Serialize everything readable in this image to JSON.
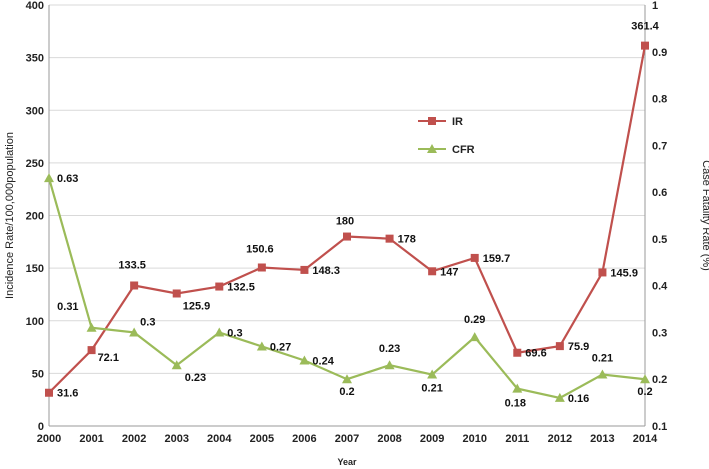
{
  "chart_data": {
    "type": "line",
    "title": "",
    "xlabel": "Year",
    "ylabel": "Incidence Rate/100,000population",
    "y2label": "Case Fatality Rate (%)",
    "x": [
      2000,
      2001,
      2002,
      2003,
      2004,
      2005,
      2006,
      2007,
      2008,
      2009,
      2010,
      2011,
      2012,
      2013,
      2014
    ],
    "ylim": [
      0,
      400
    ],
    "y2lim": [
      0.1,
      1
    ],
    "y_ticks": [
      "0",
      "50",
      "100",
      "150",
      "200",
      "250",
      "300",
      "350",
      "400"
    ],
    "y2_ticks": [
      "0.1",
      "0.2",
      "0.3",
      "0.4",
      "0.5",
      "0.6",
      "0.7",
      "0.8",
      "0.9",
      "1"
    ],
    "grid": true,
    "legend_position": "center",
    "series": [
      {
        "name": "IR",
        "axis": "left",
        "color": "#c0504d",
        "marker": "square",
        "values": [
          31.6,
          72.1,
          133.5,
          125.9,
          132.5,
          150.6,
          148.3,
          180,
          178,
          147,
          159.7,
          69.6,
          75.9,
          145.9,
          361.4
        ],
        "labels": [
          "31.6",
          "72.1",
          "133.5",
          "125.9",
          "132.5",
          "150.6",
          "148.3",
          "180",
          "178",
          "147",
          "159.7",
          "69.6",
          "75.9",
          "145.9",
          "361.4"
        ]
      },
      {
        "name": "CFR",
        "axis": "right",
        "color": "#9bbb59",
        "marker": "triangle",
        "values": [
          0.63,
          0.31,
          0.3,
          0.23,
          0.3,
          0.27,
          0.24,
          0.2,
          0.23,
          0.21,
          0.29,
          0.18,
          0.16,
          0.21,
          0.2
        ],
        "labels": [
          "0.63",
          "0.31",
          "0.3",
          "0.23",
          "0.3",
          "0.27",
          "0.24",
          "0.2",
          "0.23",
          "0.21",
          "0.29",
          "0.18",
          "0.16",
          "0.21",
          "0.2"
        ]
      }
    ]
  }
}
